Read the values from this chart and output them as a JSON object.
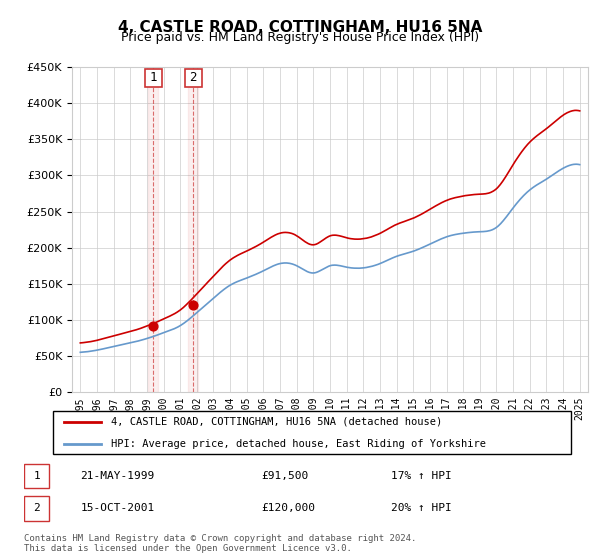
{
  "title": "4, CASTLE ROAD, COTTINGHAM, HU16 5NA",
  "subtitle": "Price paid vs. HM Land Registry's House Price Index (HPI)",
  "legend_line1": "4, CASTLE ROAD, COTTINGHAM, HU16 5NA (detached house)",
  "legend_line2": "HPI: Average price, detached house, East Riding of Yorkshire",
  "sale1_label": "1",
  "sale1_date": "21-MAY-1999",
  "sale1_price": "£91,500",
  "sale1_hpi": "17% ↑ HPI",
  "sale1_year": 1999.38,
  "sale1_value": 91500,
  "sale2_label": "2",
  "sale2_date": "15-OCT-2001",
  "sale2_price": "£120,000",
  "sale2_hpi": "20% ↑ HPI",
  "sale2_year": 2001.79,
  "sale2_value": 120000,
  "footer": "Contains HM Land Registry data © Crown copyright and database right 2024.\nThis data is licensed under the Open Government Licence v3.0.",
  "red_color": "#cc0000",
  "blue_color": "#6699cc",
  "grid_color": "#cccccc",
  "box_color": "#cc3333",
  "ylim": [
    0,
    450000
  ],
  "yticks": [
    0,
    50000,
    100000,
    150000,
    200000,
    250000,
    300000,
    350000,
    400000,
    450000
  ],
  "xlim_start": 1994.5,
  "xlim_end": 2025.5
}
